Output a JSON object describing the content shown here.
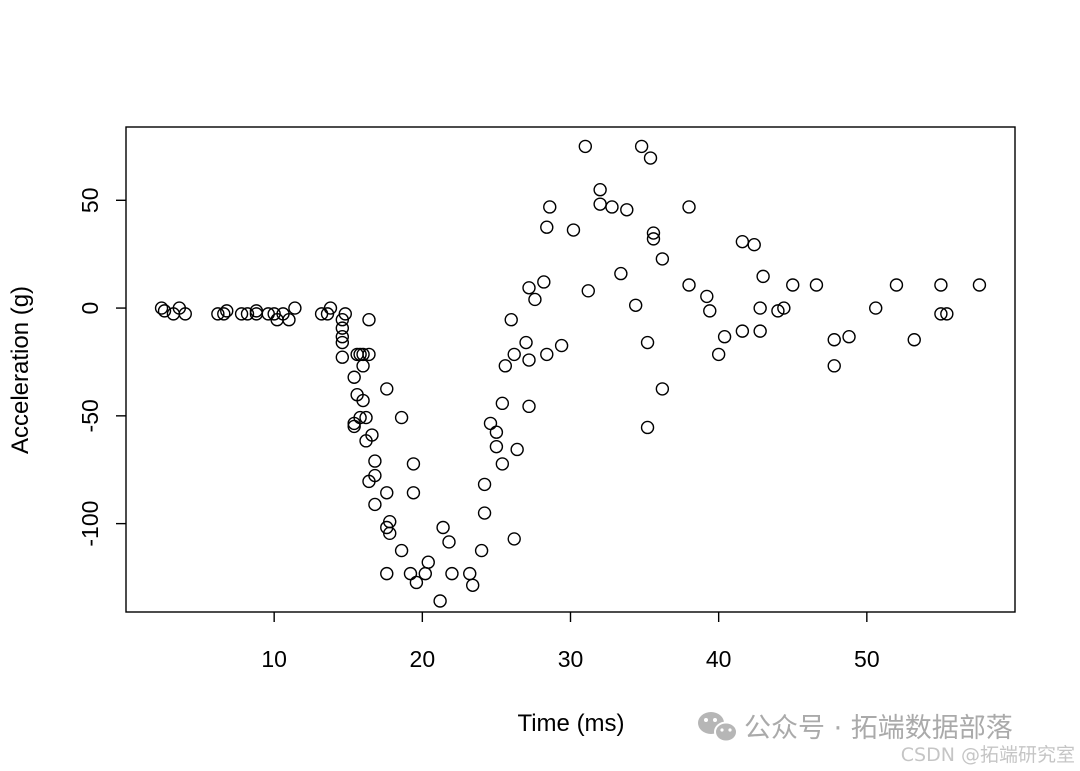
{
  "chart_data": {
    "type": "scatter",
    "title": "",
    "xlabel": "Time (ms)",
    "ylabel": "Acceleration (g)",
    "xlim": [
      0,
      60
    ],
    "ylim": [
      -141,
      84
    ],
    "x_ticks": [
      10,
      20,
      30,
      40,
      50
    ],
    "y_ticks": [
      50,
      0,
      -50,
      -100
    ],
    "x_tick_labels": [
      "10",
      "20",
      "30",
      "40",
      "50"
    ],
    "y_tick_labels": [
      "50",
      "0",
      "-50",
      "-100"
    ],
    "grid": false,
    "marker": "open-circle",
    "marker_color": "#000000",
    "points": [
      [
        2.4,
        0.0
      ],
      [
        2.6,
        -1.3
      ],
      [
        3.2,
        -2.7
      ],
      [
        3.6,
        0.0
      ],
      [
        4.0,
        -2.7
      ],
      [
        6.2,
        -2.7
      ],
      [
        6.6,
        -2.7
      ],
      [
        6.8,
        -1.3
      ],
      [
        7.8,
        -2.7
      ],
      [
        8.2,
        -2.7
      ],
      [
        8.8,
        -1.3
      ],
      [
        8.8,
        -2.7
      ],
      [
        9.6,
        -2.7
      ],
      [
        10.0,
        -2.7
      ],
      [
        10.2,
        -5.4
      ],
      [
        10.6,
        -2.7
      ],
      [
        11.0,
        -5.4
      ],
      [
        11.4,
        0.0
      ],
      [
        13.2,
        -2.7
      ],
      [
        13.6,
        -2.7
      ],
      [
        13.8,
        0.0
      ],
      [
        14.6,
        -5.4
      ],
      [
        14.6,
        -9.3
      ],
      [
        14.6,
        -13.3
      ],
      [
        14.6,
        -16.0
      ],
      [
        14.6,
        -22.8
      ],
      [
        14.8,
        -2.7
      ],
      [
        15.4,
        -32.1
      ],
      [
        15.4,
        -53.5
      ],
      [
        15.4,
        -54.9
      ],
      [
        15.6,
        -40.2
      ],
      [
        15.6,
        -21.5
      ],
      [
        15.8,
        -50.8
      ],
      [
        15.8,
        -21.5
      ],
      [
        16.0,
        -21.5
      ],
      [
        16.0,
        -42.9
      ],
      [
        16.0,
        -26.8
      ],
      [
        16.2,
        -50.8
      ],
      [
        16.2,
        -61.6
      ],
      [
        16.4,
        -21.5
      ],
      [
        16.4,
        -5.4
      ],
      [
        16.4,
        -80.4
      ],
      [
        16.6,
        -58.9
      ],
      [
        16.8,
        -77.7
      ],
      [
        16.8,
        -91.1
      ],
      [
        16.8,
        -71.0
      ],
      [
        17.6,
        -37.5
      ],
      [
        17.6,
        -85.7
      ],
      [
        17.6,
        -101.8
      ],
      [
        17.6,
        -123.2
      ],
      [
        17.8,
        -99.1
      ],
      [
        17.8,
        -104.5
      ],
      [
        18.6,
        -112.5
      ],
      [
        18.6,
        -50.8
      ],
      [
        19.2,
        -123.2
      ],
      [
        19.4,
        -72.3
      ],
      [
        19.4,
        -85.7
      ],
      [
        19.6,
        -127.3
      ],
      [
        20.2,
        -123.2
      ],
      [
        20.4,
        -117.9
      ],
      [
        21.2,
        -135.9
      ],
      [
        21.4,
        -101.8
      ],
      [
        21.8,
        -108.5
      ],
      [
        22.0,
        -123.2
      ],
      [
        23.2,
        -123.2
      ],
      [
        23.4,
        -128.6
      ],
      [
        24.0,
        -112.5
      ],
      [
        24.2,
        -81.8
      ],
      [
        24.2,
        -95.1
      ],
      [
        24.6,
        -53.5
      ],
      [
        25.0,
        -64.3
      ],
      [
        25.0,
        -57.6
      ],
      [
        25.4,
        -72.3
      ],
      [
        25.4,
        -44.2
      ],
      [
        25.6,
        -26.8
      ],
      [
        26.0,
        -5.4
      ],
      [
        26.2,
        -21.5
      ],
      [
        26.2,
        -107.1
      ],
      [
        26.4,
        -65.6
      ],
      [
        27.0,
        -16.0
      ],
      [
        27.2,
        -45.6
      ],
      [
        27.2,
        -24.1
      ],
      [
        27.2,
        9.4
      ],
      [
        27.6,
        4.0
      ],
      [
        28.2,
        12.1
      ],
      [
        28.4,
        -21.5
      ],
      [
        28.4,
        37.5
      ],
      [
        28.6,
        46.9
      ],
      [
        29.4,
        -17.4
      ],
      [
        30.2,
        36.2
      ],
      [
        31.0,
        75.0
      ],
      [
        31.2,
        8.0
      ],
      [
        32.0,
        54.9
      ],
      [
        32.0,
        48.2
      ],
      [
        32.8,
        46.9
      ],
      [
        33.4,
        16.0
      ],
      [
        33.8,
        45.6
      ],
      [
        34.4,
        1.3
      ],
      [
        34.8,
        75.0
      ],
      [
        35.2,
        -16.0
      ],
      [
        35.2,
        -55.4
      ],
      [
        35.4,
        69.6
      ],
      [
        35.6,
        34.8
      ],
      [
        35.6,
        32.1
      ],
      [
        36.2,
        22.8
      ],
      [
        36.2,
        -37.5
      ],
      [
        38.0,
        46.9
      ],
      [
        38.0,
        10.7
      ],
      [
        39.2,
        5.4
      ],
      [
        39.4,
        -1.3
      ],
      [
        40.0,
        -21.5
      ],
      [
        40.4,
        -13.3
      ],
      [
        41.6,
        30.8
      ],
      [
        41.6,
        -10.7
      ],
      [
        42.4,
        29.4
      ],
      [
        42.8,
        0.0
      ],
      [
        42.8,
        -10.7
      ],
      [
        43.0,
        14.7
      ],
      [
        44.0,
        -1.3
      ],
      [
        44.4,
        0.0
      ],
      [
        45.0,
        10.7
      ],
      [
        46.6,
        10.7
      ],
      [
        47.8,
        -26.8
      ],
      [
        47.8,
        -14.7
      ],
      [
        48.8,
        -13.3
      ],
      [
        50.6,
        0.0
      ],
      [
        52.0,
        10.7
      ],
      [
        53.2,
        -14.7
      ],
      [
        55.0,
        10.7
      ],
      [
        55.0,
        -2.7
      ],
      [
        55.4,
        -2.7
      ],
      [
        57.6,
        10.7
      ]
    ]
  },
  "watermark": {
    "main_text": "公众号 · 拓端数据部落",
    "sub_text": "CSDN @拓端研究室",
    "icon": "wechat-icon"
  }
}
